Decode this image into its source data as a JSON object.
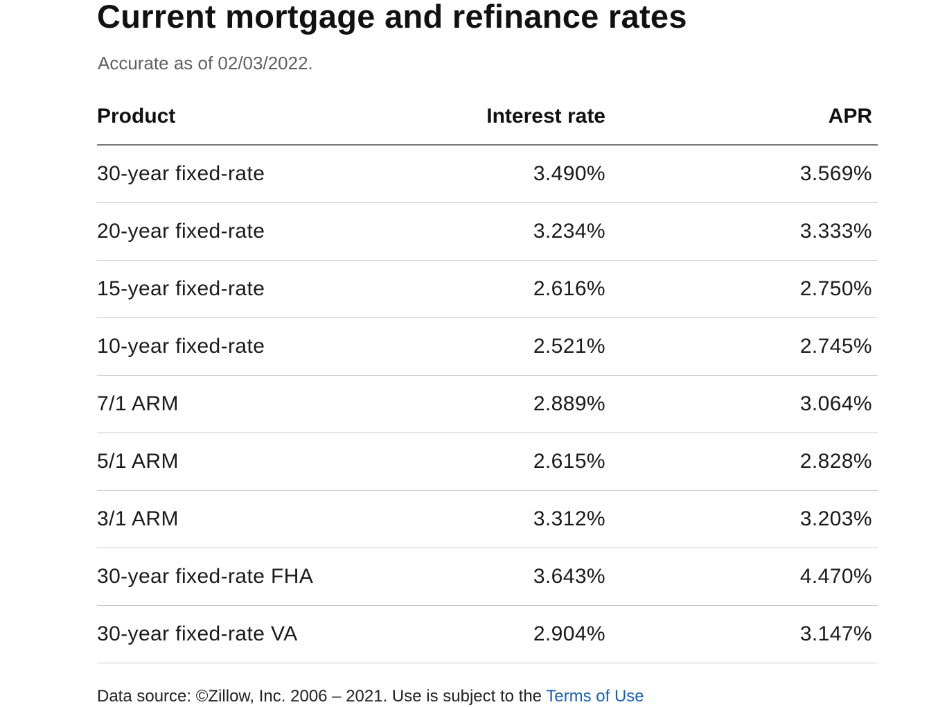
{
  "header": {
    "title": "Current mortgage and refinance rates",
    "subtitle": "Accurate as of 02/03/2022."
  },
  "table": {
    "columns": [
      "Product",
      "Interest rate",
      "APR"
    ],
    "rows": [
      {
        "product": "30-year fixed-rate",
        "interest_rate": "3.490%",
        "apr": "3.569%"
      },
      {
        "product": "20-year fixed-rate",
        "interest_rate": "3.234%",
        "apr": "3.333%"
      },
      {
        "product": "15-year fixed-rate",
        "interest_rate": "2.616%",
        "apr": "2.750%"
      },
      {
        "product": "10-year fixed-rate",
        "interest_rate": "2.521%",
        "apr": "2.745%"
      },
      {
        "product": "7/1 ARM",
        "interest_rate": "2.889%",
        "apr": "3.064%"
      },
      {
        "product": "5/1 ARM",
        "interest_rate": "2.615%",
        "apr": "2.828%"
      },
      {
        "product": "3/1 ARM",
        "interest_rate": "3.312%",
        "apr": "3.203%"
      },
      {
        "product": "30-year fixed-rate FHA",
        "interest_rate": "3.643%",
        "apr": "4.470%"
      },
      {
        "product": "30-year fixed-rate VA",
        "interest_rate": "2.904%",
        "apr": "3.147%"
      }
    ]
  },
  "footer": {
    "text": "Data source: ©Zillow, Inc. 2006 – 2021. Use is subject to the ",
    "link_label": "Terms of Use"
  },
  "colors": {
    "text": "#111111",
    "subtitle": "#5f5f5f",
    "link": "#1a5fb4",
    "header_rule": "#777777",
    "row_rule": "#c8c8c8"
  }
}
